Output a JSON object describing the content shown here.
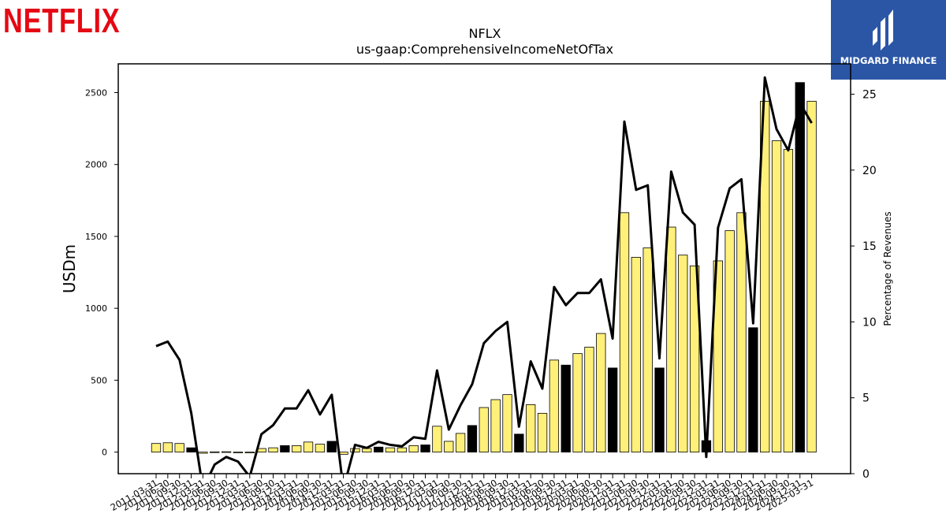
{
  "branding": {
    "company_wordmark": "NETFLIX",
    "publisher_name": "MIDGARD FINANCE",
    "colors": {
      "company": "#e50914",
      "publisher_bg": "#2b56a6"
    }
  },
  "chart_data": {
    "type": "bar",
    "title": "NFLX",
    "subtitle": "us-gaap:ComprehensiveIncomeNetOfTax",
    "ylabel": "USDm",
    "y2label": "Percentage of Revenues",
    "ylim": [
      -150,
      2700
    ],
    "y2lim": [
      0,
      27
    ],
    "yticks": [
      0,
      500,
      1000,
      1500,
      2000,
      2500
    ],
    "y2ticks": [
      0,
      5,
      10,
      15,
      20,
      25
    ],
    "colors": {
      "bar_primary": "#fff07a",
      "bar_alt": "#000000",
      "line": "#000000"
    },
    "categories": [
      "2011-03-31",
      "2011-06-30",
      "2011-09-30",
      "2011-12-31",
      "2012-03-31",
      "2012-06-30",
      "2012-09-30",
      "2012-12-31",
      "2013-03-31",
      "2013-06-30",
      "2013-09-30",
      "2013-12-31",
      "2014-03-31",
      "2014-06-30",
      "2014-09-30",
      "2014-12-31",
      "2015-03-31",
      "2015-06-30",
      "2015-09-30",
      "2015-12-31",
      "2016-03-31",
      "2016-06-30",
      "2016-09-30",
      "2016-12-31",
      "2017-03-31",
      "2017-06-30",
      "2017-09-30",
      "2017-12-31",
      "2018-03-31",
      "2018-06-30",
      "2018-09-30",
      "2018-12-31",
      "2019-03-31",
      "2019-06-30",
      "2019-09-30",
      "2019-12-31",
      "2020-03-31",
      "2020-06-30",
      "2020-09-30",
      "2020-12-31",
      "2021-03-31",
      "2021-06-30",
      "2021-09-30",
      "2021-12-31",
      "2022-03-31",
      "2022-06-30",
      "2022-09-30",
      "2022-12-31",
      "2023-03-31",
      "2023-06-30",
      "2023-09-30",
      "2023-12-31",
      "2024-03-31",
      "2024-06-30",
      "2024-09-30",
      "2024-12-31",
      "2025-03-31"
    ],
    "series": [
      {
        "kind": "bar",
        "values": [
          60,
          65,
          60,
          30,
          -8,
          2,
          3,
          -3,
          -2,
          25,
          30,
          45,
          45,
          70,
          55,
          75,
          -15,
          25,
          25,
          35,
          30,
          30,
          45,
          50,
          180,
          75,
          130,
          185,
          310,
          365,
          400,
          125,
          330,
          270,
          640,
          605,
          685,
          730,
          825,
          585,
          1665,
          1355,
          1420,
          585,
          1565,
          1370,
          1295,
          80,
          1330,
          1540,
          1665,
          865,
          2440,
          2165,
          2105,
          2570,
          2440
        ],
        "highlight": [
          false,
          false,
          false,
          true,
          false,
          false,
          false,
          false,
          false,
          false,
          false,
          true,
          false,
          false,
          false,
          true,
          false,
          false,
          false,
          true,
          false,
          false,
          false,
          true,
          false,
          false,
          false,
          true,
          false,
          false,
          false,
          true,
          false,
          false,
          false,
          true,
          false,
          false,
          false,
          true,
          false,
          false,
          false,
          true,
          false,
          false,
          false,
          true,
          false,
          false,
          false,
          true,
          false,
          false,
          false,
          true,
          false
        ]
      },
      {
        "kind": "line",
        "axis": "right",
        "values": [
          8.4,
          8.7,
          7.5,
          4.0,
          -1.0,
          0.6,
          1.1,
          0.8,
          -0.2,
          2.6,
          3.2,
          4.3,
          4.3,
          5.5,
          3.9,
          5.2,
          -1.0,
          1.9,
          1.7,
          2.1,
          1.9,
          1.8,
          2.4,
          2.3,
          6.8,
          2.9,
          4.5,
          5.9,
          8.6,
          9.4,
          10.0,
          3.1,
          7.4,
          5.6,
          12.3,
          11.1,
          11.9,
          11.9,
          12.8,
          8.9,
          23.2,
          18.7,
          19.0,
          7.6,
          19.9,
          17.2,
          16.4,
          1.1,
          16.2,
          18.8,
          19.4,
          9.9,
          26.1,
          22.7,
          21.3,
          24.4,
          23.1
        ]
      }
    ]
  }
}
